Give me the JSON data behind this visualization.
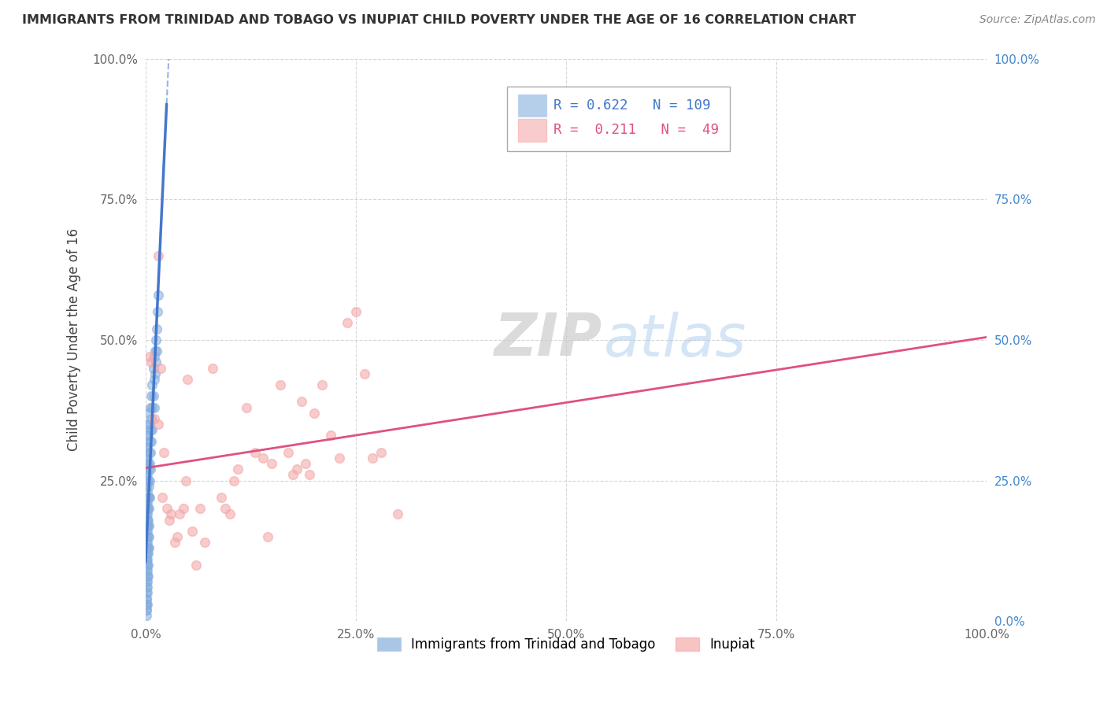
{
  "title": "IMMIGRANTS FROM TRINIDAD AND TOBAGO VS INUPIAT CHILD POVERTY UNDER THE AGE OF 16 CORRELATION CHART",
  "source": "Source: ZipAtlas.com",
  "ylabel": "Child Poverty Under the Age of 16",
  "r_blue": 0.622,
  "n_blue": 109,
  "r_pink": 0.211,
  "n_pink": 49,
  "blue_color": "#85AEDD",
  "pink_color": "#F4AAAA",
  "line_blue": "#4477CC",
  "line_pink": "#E05080",
  "watermark_zip": "ZIP",
  "watermark_atlas": "atlas",
  "bg_color": "#FFFFFF",
  "grid_color": "#CCCCCC",
  "title_color": "#333333",
  "right_axis_color": "#4488CC",
  "blue_scatter_x": [
    0.001,
    0.001,
    0.001,
    0.001,
    0.001,
    0.001,
    0.001,
    0.001,
    0.001,
    0.001,
    0.001,
    0.001,
    0.001,
    0.001,
    0.001,
    0.001,
    0.001,
    0.002,
    0.002,
    0.002,
    0.002,
    0.002,
    0.002,
    0.002,
    0.002,
    0.002,
    0.002,
    0.002,
    0.002,
    0.002,
    0.002,
    0.002,
    0.002,
    0.003,
    0.003,
    0.003,
    0.003,
    0.003,
    0.003,
    0.003,
    0.003,
    0.003,
    0.003,
    0.003,
    0.004,
    0.004,
    0.004,
    0.004,
    0.004,
    0.004,
    0.004,
    0.004,
    0.005,
    0.005,
    0.005,
    0.005,
    0.005,
    0.006,
    0.006,
    0.006,
    0.006,
    0.007,
    0.007,
    0.007,
    0.008,
    0.008,
    0.008,
    0.009,
    0.009,
    0.01,
    0.01,
    0.01,
    0.011,
    0.011,
    0.012,
    0.012,
    0.013,
    0.013,
    0.014,
    0.015,
    0.001,
    0.001,
    0.001,
    0.002,
    0.002,
    0.002,
    0.003,
    0.003,
    0.001,
    0.001,
    0.001,
    0.001,
    0.001,
    0.001,
    0.002,
    0.002,
    0.002,
    0.003,
    0.001,
    0.001,
    0.001,
    0.001,
    0.002,
    0.002,
    0.001,
    0.002,
    0.001,
    0.001,
    0.001
  ],
  "blue_scatter_y": [
    0.2,
    0.18,
    0.16,
    0.15,
    0.14,
    0.13,
    0.12,
    0.11,
    0.1,
    0.09,
    0.08,
    0.07,
    0.06,
    0.05,
    0.04,
    0.03,
    0.02,
    0.25,
    0.22,
    0.2,
    0.18,
    0.17,
    0.16,
    0.14,
    0.13,
    0.12,
    0.11,
    0.1,
    0.09,
    0.08,
    0.07,
    0.06,
    0.05,
    0.28,
    0.25,
    0.22,
    0.2,
    0.18,
    0.17,
    0.15,
    0.13,
    0.12,
    0.1,
    0.08,
    0.3,
    0.27,
    0.24,
    0.22,
    0.2,
    0.17,
    0.15,
    0.13,
    0.35,
    0.32,
    0.28,
    0.25,
    0.22,
    0.38,
    0.34,
    0.3,
    0.27,
    0.4,
    0.36,
    0.32,
    0.42,
    0.38,
    0.34,
    0.45,
    0.4,
    0.47,
    0.43,
    0.38,
    0.48,
    0.44,
    0.5,
    0.46,
    0.52,
    0.48,
    0.55,
    0.58,
    0.31,
    0.29,
    0.27,
    0.33,
    0.31,
    0.29,
    0.35,
    0.33,
    0.21,
    0.19,
    0.17,
    0.15,
    0.13,
    0.11,
    0.23,
    0.21,
    0.19,
    0.37,
    0.26,
    0.24,
    0.22,
    0.2,
    0.28,
    0.26,
    0.04,
    0.03,
    0.02,
    0.01,
    0.03
  ],
  "pink_scatter_x": [
    0.005,
    0.007,
    0.01,
    0.015,
    0.015,
    0.018,
    0.02,
    0.022,
    0.025,
    0.028,
    0.03,
    0.035,
    0.038,
    0.04,
    0.045,
    0.048,
    0.05,
    0.055,
    0.06,
    0.065,
    0.07,
    0.08,
    0.09,
    0.095,
    0.1,
    0.105,
    0.11,
    0.12,
    0.13,
    0.14,
    0.145,
    0.15,
    0.16,
    0.17,
    0.175,
    0.18,
    0.185,
    0.19,
    0.195,
    0.2,
    0.21,
    0.22,
    0.23,
    0.24,
    0.25,
    0.26,
    0.27,
    0.28,
    0.3
  ],
  "pink_scatter_y": [
    0.47,
    0.46,
    0.36,
    0.35,
    0.65,
    0.45,
    0.22,
    0.3,
    0.2,
    0.18,
    0.19,
    0.14,
    0.15,
    0.19,
    0.2,
    0.25,
    0.43,
    0.16,
    0.1,
    0.2,
    0.14,
    0.45,
    0.22,
    0.2,
    0.19,
    0.25,
    0.27,
    0.38,
    0.3,
    0.29,
    0.15,
    0.28,
    0.42,
    0.3,
    0.26,
    0.27,
    0.39,
    0.28,
    0.26,
    0.37,
    0.42,
    0.33,
    0.29,
    0.53,
    0.55,
    0.44,
    0.29,
    0.3,
    0.19
  ],
  "xlim": [
    0.0,
    1.0
  ],
  "ylim": [
    0.0,
    1.0
  ],
  "xticks": [
    0.0,
    0.25,
    0.5,
    0.75,
    1.0
  ],
  "yticks": [
    0.0,
    0.25,
    0.5,
    0.75,
    1.0
  ],
  "xtick_labels": [
    "0.0%",
    "25.0%",
    "50.0%",
    "75.0%",
    "100.0%"
  ],
  "left_ytick_labels": [
    "",
    "25.0%",
    "50.0%",
    "75.0%",
    "100.0%"
  ],
  "right_ytick_labels": [
    "0.0%",
    "25.0%",
    "50.0%",
    "75.0%",
    "100.0%"
  ],
  "legend_label_blue": "Immigrants from Trinidad and Tobago",
  "legend_label_pink": "Inupiat",
  "marker_size": 70,
  "blue_line_x0": 0.0,
  "blue_line_x1": 0.025,
  "blue_line_dashed_x1": 0.33,
  "pink_line_x0": 0.0,
  "pink_line_x1": 1.0
}
